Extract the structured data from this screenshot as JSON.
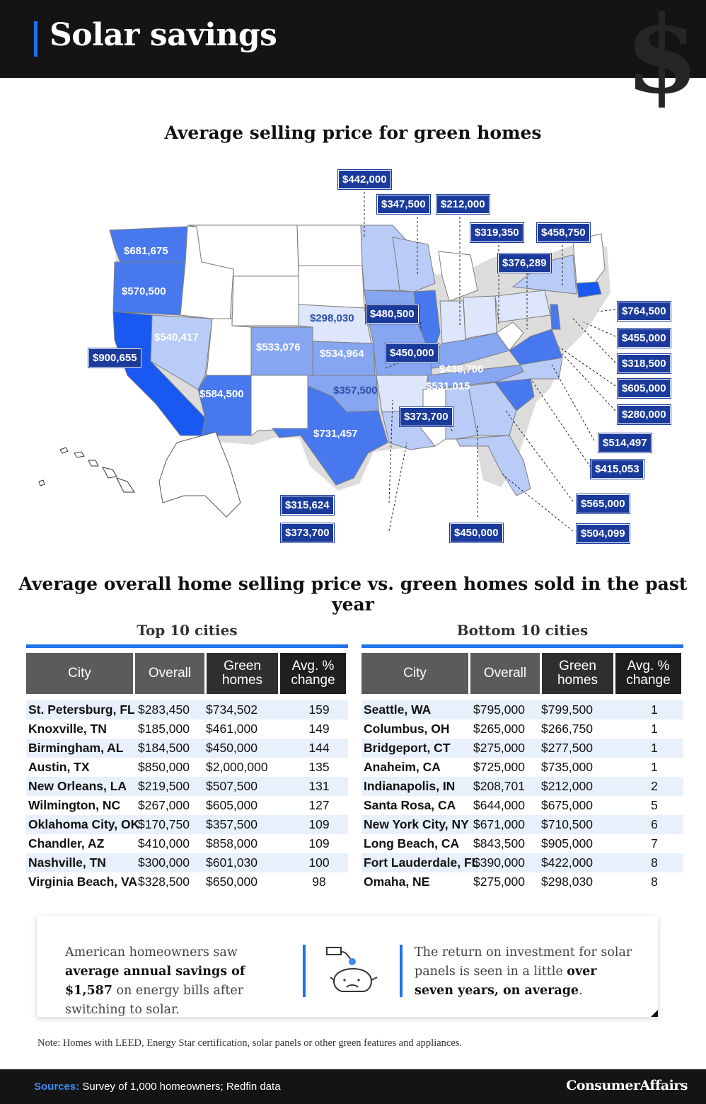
{
  "header": {
    "title": "Solar savings"
  },
  "map_section": {
    "title": "Average selling price for green homes",
    "state_labels": [
      "$681,675",
      "$570,500",
      "$540,417",
      "$900,655",
      "$584,500",
      "$533,076",
      "$534,964",
      "$298,030",
      "$357,500",
      "$731,457",
      "$438,700",
      "$531,015"
    ],
    "callout_labels": [
      "$442,000",
      "$347,500",
      "$212,000",
      "$319,350",
      "$458,750",
      "$376,289",
      "$480,500",
      "$450,000",
      "$373,700",
      "$764,500",
      "$455,000",
      "$318,500",
      "$605,000",
      "$280,000",
      "$514,497",
      "$415,053",
      "$565,000",
      "$504,099",
      "$315,624",
      "$373,700",
      "$450,000"
    ],
    "colors": {
      "label_bg": "#1a3a9c",
      "darkest": "#1959f2",
      "dark": "#4778ee",
      "mid": "#86a6f2",
      "light": "#b9cbf7",
      "lightest": "#dde6fb",
      "none": "#ffffff"
    }
  },
  "tables_section": {
    "title": "Average overall home selling price vs. green homes sold in the past year",
    "headers": {
      "city": "City",
      "overall": "Overall",
      "green": "Green homes",
      "change": "Avg. % change"
    },
    "top": {
      "subtitle": "Top 10 cities",
      "rows": [
        {
          "city": "St. Petersburg, FL",
          "overall": "$283,450",
          "green": "$734,502",
          "change": "159"
        },
        {
          "city": "Knoxville, TN",
          "overall": "$185,000",
          "green": "$461,000",
          "change": "149"
        },
        {
          "city": "Birmingham, AL",
          "overall": "$184,500",
          "green": "$450,000",
          "change": "144"
        },
        {
          "city": "Austin, TX",
          "overall": "$850,000",
          "green": "$2,000,000",
          "change": "135"
        },
        {
          "city": "New Orleans, LA",
          "overall": "$219,500",
          "green": "$507,500",
          "change": "131"
        },
        {
          "city": "Wilmington, NC",
          "overall": "$267,000",
          "green": "$605,000",
          "change": "127"
        },
        {
          "city": "Oklahoma City, OK",
          "overall": "$170,750",
          "green": "$357,500",
          "change": "109"
        },
        {
          "city": "Chandler, AZ",
          "overall": "$410,000",
          "green": "$858,000",
          "change": "109"
        },
        {
          "city": "Nashville, TN",
          "overall": "$300,000",
          "green": "$601,030",
          "change": "100"
        },
        {
          "city": "Virginia Beach, VA",
          "overall": "$328,500",
          "green": "$650,000",
          "change": "98"
        }
      ]
    },
    "bottom": {
      "subtitle": "Bottom 10 cities",
      "rows": [
        {
          "city": "Seattle, WA",
          "overall": "$795,000",
          "green": "$799,500",
          "change": "1"
        },
        {
          "city": "Columbus, OH",
          "overall": "$265,000",
          "green": "$266,750",
          "change": "1"
        },
        {
          "city": "Bridgeport, CT",
          "overall": "$275,000",
          "green": "$277,500",
          "change": "1"
        },
        {
          "city": "Anaheim, CA",
          "overall": "$725,000",
          "green": "$735,000",
          "change": "1"
        },
        {
          "city": "Indianapolis, IN",
          "overall": "$208,701",
          "green": "$212,000",
          "change": "2"
        },
        {
          "city": "Santa Rosa, CA",
          "overall": "$644,000",
          "green": "$675,000",
          "change": "5"
        },
        {
          "city": "New York City, NY",
          "overall": "$671,000",
          "green": "$710,500",
          "change": "6"
        },
        {
          "city": "Long Beach, CA",
          "overall": "$843,500",
          "green": "$905,000",
          "change": "7"
        },
        {
          "city": "Fort Lauderdale, FL",
          "overall": "$390,000",
          "green": "$422,000",
          "change": "8"
        },
        {
          "city": "Omaha, NE",
          "overall": "$275,000",
          "green": "$298,030",
          "change": "8"
        }
      ]
    }
  },
  "callout": {
    "left_pre": "American homeowners saw ",
    "left_bold": "average annual savings of $1,587",
    "left_post": " on energy bills after switching to solar.",
    "right_pre": "The return on investment for solar panels is seen in a little ",
    "right_bold": "over seven years, on average",
    "right_post": "."
  },
  "note": "Note: Homes with LEED, Energy Star certification, solar panels or other green features and appliances.",
  "footer": {
    "sources_label": "Sources:",
    "sources_text": " Survey of 1,000 homeowners; Redfin data",
    "logo": "ConsumerAffairs"
  }
}
